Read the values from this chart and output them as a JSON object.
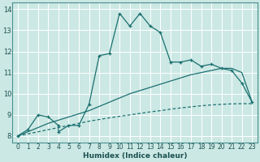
{
  "xlabel": "Humidex (Indice chaleur)",
  "xlim": [
    -0.5,
    23.5
  ],
  "ylim": [
    7.7,
    14.3
  ],
  "xticks": [
    0,
    1,
    2,
    3,
    4,
    5,
    6,
    7,
    8,
    9,
    10,
    11,
    12,
    13,
    14,
    15,
    16,
    17,
    18,
    19,
    20,
    21,
    22,
    23
  ],
  "yticks": [
    8,
    9,
    10,
    11,
    12,
    13,
    14
  ],
  "bg_color": "#cce8e4",
  "grid_color": "#b0d4ce",
  "line_color": "#1a7070",
  "main_x": [
    0,
    1,
    2,
    3,
    4,
    4,
    5,
    6,
    7,
    8,
    9,
    10,
    11,
    12,
    13,
    14,
    15,
    16,
    17,
    18,
    19,
    20,
    21,
    22,
    23
  ],
  "main_y": [
    8.0,
    8.3,
    9.0,
    8.9,
    8.5,
    8.2,
    8.5,
    8.5,
    9.5,
    11.8,
    11.9,
    13.8,
    13.2,
    13.8,
    13.2,
    12.9,
    11.5,
    11.5,
    11.6,
    11.3,
    11.4,
    11.2,
    11.1,
    10.5,
    9.6
  ],
  "upper_x": [
    0,
    1,
    2,
    3,
    4,
    5,
    6,
    7,
    8,
    9,
    10,
    11,
    12,
    13,
    14,
    15,
    16,
    17,
    18,
    19,
    20,
    21,
    22,
    23
  ],
  "upper_y": [
    8.0,
    8.2,
    8.4,
    8.6,
    8.75,
    8.9,
    9.05,
    9.2,
    9.4,
    9.6,
    9.8,
    10.0,
    10.15,
    10.3,
    10.45,
    10.6,
    10.75,
    10.9,
    11.0,
    11.1,
    11.2,
    11.2,
    11.0,
    9.6
  ],
  "lower_x": [
    0,
    1,
    2,
    3,
    4,
    5,
    6,
    7,
    8,
    9,
    10,
    11,
    12,
    13,
    14,
    15,
    16,
    17,
    18,
    19,
    20,
    21,
    22,
    23
  ],
  "lower_y": [
    8.0,
    8.1,
    8.2,
    8.3,
    8.4,
    8.5,
    8.6,
    8.7,
    8.78,
    8.86,
    8.93,
    9.0,
    9.07,
    9.14,
    9.2,
    9.27,
    9.33,
    9.38,
    9.43,
    9.47,
    9.5,
    9.52,
    9.53,
    9.53
  ],
  "xlabel_fontsize": 6.5,
  "tick_fontsize": 5.5
}
